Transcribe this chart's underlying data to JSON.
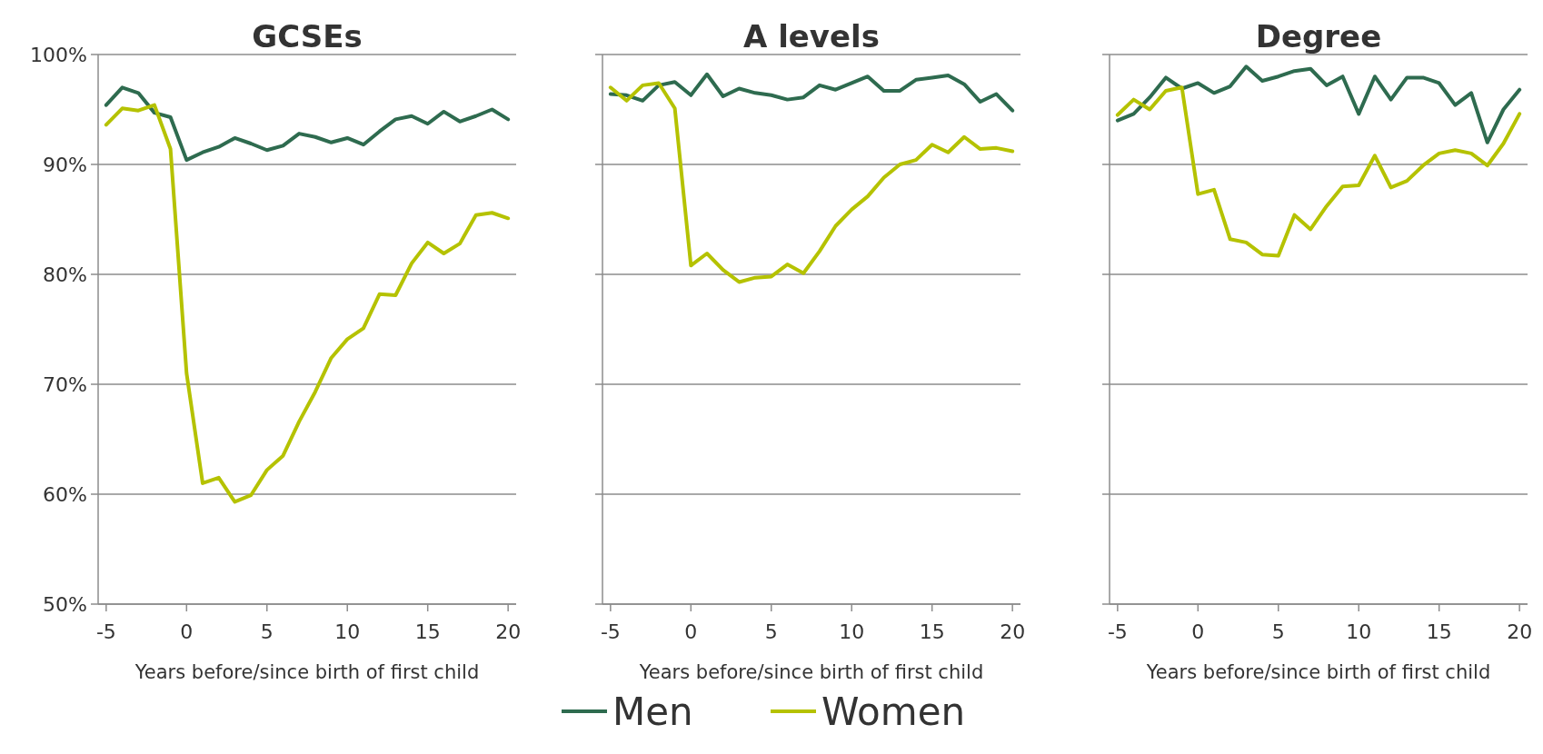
{
  "chart_data": [
    {
      "type": "line",
      "title": "GCSEs",
      "xlabel": "Years before/since birth of first child",
      "x": [
        -5,
        -4,
        -3,
        -2,
        -1,
        0,
        1,
        2,
        3,
        4,
        5,
        6,
        7,
        8,
        9,
        10,
        11,
        12,
        13,
        14,
        15,
        16,
        17,
        18,
        19,
        20
      ],
      "xlim": [
        -5.5,
        20.5
      ],
      "xticks": [
        -5,
        0,
        5,
        10,
        15,
        20
      ],
      "ylim": [
        50,
        100
      ],
      "yticks": [
        {
          "value": 50,
          "label": "50%"
        },
        {
          "value": 60,
          "label": "60%"
        },
        {
          "value": 70,
          "label": "70%"
        },
        {
          "value": 80,
          "label": "80%"
        },
        {
          "value": 90,
          "label": "90%"
        },
        {
          "value": 100,
          "label": "100%"
        }
      ],
      "grid": "y",
      "legend": "bottom",
      "series": [
        {
          "name": "Men",
          "color": "#2e6b4f",
          "values": [
            95.4,
            97.0,
            96.5,
            94.7,
            94.3,
            90.4,
            91.1,
            91.6,
            92.4,
            91.9,
            91.3,
            91.7,
            92.8,
            92.5,
            92.0,
            92.4,
            91.8,
            93.0,
            94.1,
            94.4,
            93.7,
            94.8,
            93.9,
            94.4,
            95.0,
            94.1
          ]
        },
        {
          "name": "Women",
          "color": "#b5c200",
          "values": [
            93.6,
            95.1,
            94.9,
            95.4,
            91.4,
            71.0,
            61.0,
            61.5,
            59.3,
            59.9,
            62.2,
            63.5,
            66.6,
            69.3,
            72.4,
            74.1,
            75.1,
            78.2,
            78.1,
            81.0,
            82.9,
            81.9,
            82.8,
            85.4,
            85.6,
            85.1
          ]
        }
      ]
    },
    {
      "type": "line",
      "title": "A levels",
      "xlabel": "Years before/since birth of first child",
      "x": [
        -5,
        -4,
        -3,
        -2,
        -1,
        0,
        1,
        2,
        3,
        4,
        5,
        6,
        7,
        8,
        9,
        10,
        11,
        12,
        13,
        14,
        15,
        16,
        17,
        18,
        19,
        20
      ],
      "xlim": [
        -5.5,
        20.5
      ],
      "xticks": [
        -5,
        0,
        5,
        10,
        15,
        20
      ],
      "ylim": [
        50,
        100
      ],
      "yticks": [
        {
          "value": 50,
          "label": null
        },
        {
          "value": 60,
          "label": null
        },
        {
          "value": 70,
          "label": null
        },
        {
          "value": 80,
          "label": null
        },
        {
          "value": 90,
          "label": null
        },
        {
          "value": 100,
          "label": null
        }
      ],
      "grid": "y",
      "tick_labels": "x",
      "series": [
        {
          "color": "#2e6b4f",
          "values": [
            96.4,
            96.3,
            95.8,
            97.2,
            97.5,
            96.3,
            98.2,
            96.2,
            96.9,
            96.5,
            96.3,
            95.9,
            96.1,
            97.2,
            96.8,
            97.4,
            98.0,
            96.7,
            96.7,
            97.7,
            97.9,
            98.1,
            97.3,
            95.7,
            96.4,
            94.9
          ]
        },
        {
          "color": "#b5c200",
          "values": [
            97.0,
            95.8,
            97.2,
            97.4,
            95.1,
            80.8,
            81.9,
            80.4,
            79.3,
            79.7,
            79.8,
            80.9,
            80.1,
            82.1,
            84.4,
            85.9,
            87.1,
            88.8,
            90.0,
            90.4,
            91.8,
            91.1,
            92.5,
            91.4,
            91.5,
            91.2
          ]
        }
      ]
    },
    {
      "type": "line",
      "title": "Degree",
      "xlabel": "Years before/since birth of first child",
      "x": [
        -5,
        -4,
        -3,
        -2,
        -1,
        0,
        1,
        2,
        3,
        4,
        5,
        6,
        7,
        8,
        9,
        10,
        11,
        12,
        13,
        14,
        15,
        16,
        17,
        18,
        19,
        20
      ],
      "xlim": [
        -5.5,
        20.5
      ],
      "xticks": [
        -5,
        0,
        5,
        10,
        15,
        20
      ],
      "ylim": [
        50,
        100
      ],
      "yticks": [
        {
          "value": 50,
          "label": null
        },
        {
          "value": 60,
          "label": null
        },
        {
          "value": 70,
          "label": null
        },
        {
          "value": 80,
          "label": null
        },
        {
          "value": 90,
          "label": null
        },
        {
          "value": 100,
          "label": null
        }
      ],
      "grid": "y",
      "tick_labels": "x",
      "series": [
        {
          "color": "#2e6b4f",
          "values": [
            94.0,
            94.6,
            96.1,
            97.9,
            96.9,
            97.4,
            96.5,
            97.1,
            98.9,
            97.6,
            98.0,
            98.5,
            98.7,
            97.2,
            98.0,
            94.6,
            98.0,
            95.9,
            97.9,
            97.9,
            97.4,
            95.4,
            96.5,
            92.0,
            95.0,
            96.8
          ]
        },
        {
          "color": "#b5c200",
          "values": [
            94.5,
            95.9,
            95.0,
            96.7,
            97.0,
            87.3,
            87.7,
            83.2,
            82.9,
            81.8,
            81.7,
            85.4,
            84.1,
            86.2,
            88.0,
            88.1,
            90.8,
            87.9,
            88.5,
            89.9,
            91.0,
            91.3,
            91.0,
            89.9,
            91.9,
            94.6
          ]
        }
      ]
    }
  ]
}
